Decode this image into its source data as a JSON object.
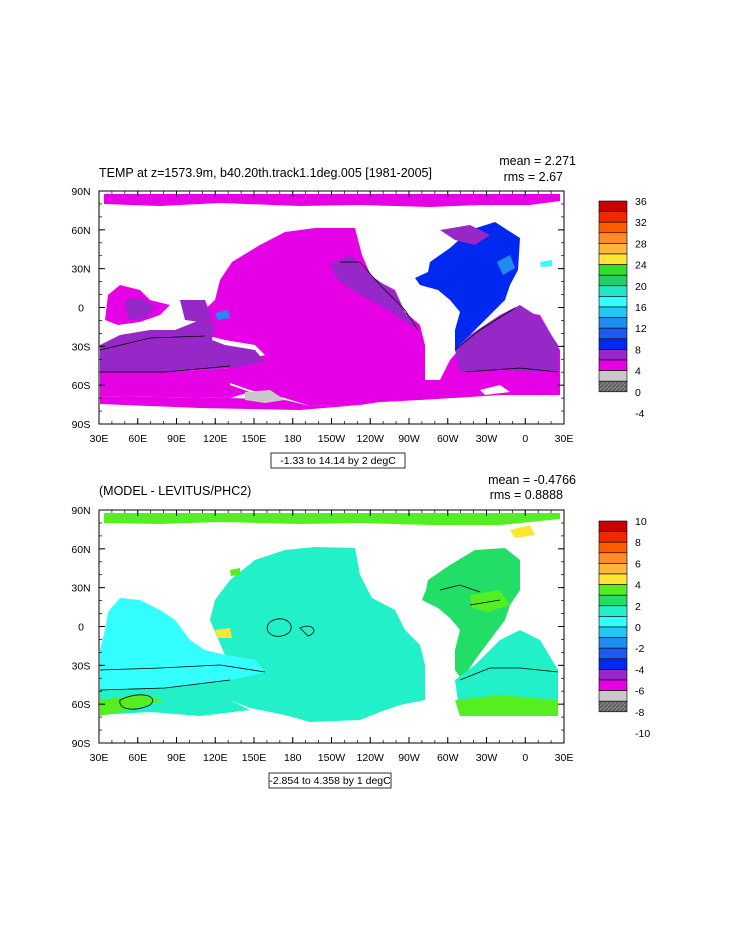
{
  "panels": [
    {
      "title": "TEMP at z=1573.9m, b40.20th.track1.1deg.005 [1981-2005]",
      "mean_text": "mean = 2.271",
      "rms_text": "rms = 2.67",
      "contour_info": "-1.33 to 14.14 by 2 degC",
      "colorbar_labels": [
        "36",
        "32",
        "28",
        "24",
        "20",
        "16",
        "12",
        "8",
        "4",
        "0",
        "-4"
      ],
      "colorbar_colors": [
        "#c80000",
        "#f02800",
        "#ff5a00",
        "#ff8c28",
        "#ffb43c",
        "#ffe632",
        "#33dd2a",
        "#22cc66",
        "#22e6c8",
        "#33ffff",
        "#22c8f0",
        "#1e8cf0",
        "#1e5af0",
        "#0028f0",
        "#9628c8",
        "#e600e6",
        "#c8c8c8",
        "#808080"
      ]
    },
    {
      "title": "(MODEL - LEVITUS/PHC2)",
      "mean_text": "mean = -0.4766",
      "rms_text": "rms = 0.8888",
      "contour_info": "-2.854 to 4.358 by 1 degC",
      "colorbar_labels": [
        "10",
        "8",
        "6",
        "4",
        "2",
        "0",
        "-2",
        "-4",
        "-6",
        "-8",
        "-10"
      ],
      "colorbar_colors": [
        "#c80000",
        "#f02800",
        "#ff5a00",
        "#ff8c28",
        "#ffb43c",
        "#ffe632",
        "#55ee22",
        "#22dd66",
        "#22f0c8",
        "#33ffff",
        "#22c8f0",
        "#1e8cf0",
        "#1e5af0",
        "#0028f0",
        "#9628c8",
        "#e600e6",
        "#c8c8c8",
        "#808080"
      ]
    }
  ],
  "axes": {
    "lon_labels": [
      "30E",
      "60E",
      "90E",
      "120E",
      "150E",
      "180",
      "150W",
      "120W",
      "90W",
      "60W",
      "30W",
      "0",
      "30E"
    ],
    "lat_labels": [
      "90N",
      "60N",
      "30N",
      "0",
      "30S",
      "60S",
      "90S"
    ]
  }
}
